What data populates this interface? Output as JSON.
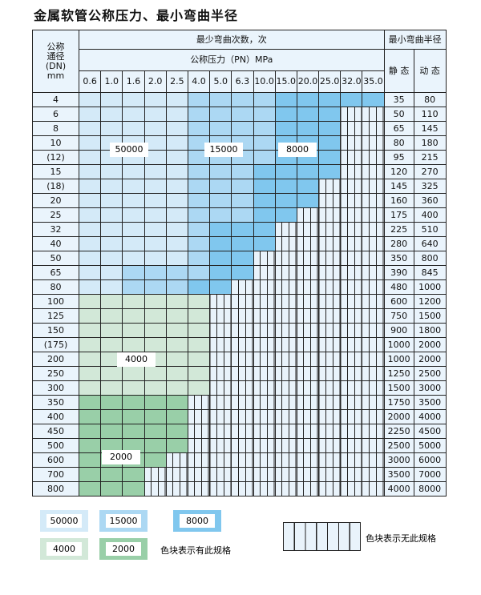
{
  "title": "金属软管公称压力、最小弯曲半径",
  "header": {
    "dn_label": [
      "公称",
      "通径",
      "(DN)",
      "mm"
    ],
    "cycles": "最少弯曲次数，次",
    "pressure": "公称压力（PN）MPa",
    "radius": "最小弯曲半径",
    "static": "静 态",
    "dynamic": "动 态",
    "pressures": [
      "0.6",
      "1.0",
      "1.6",
      "2.0",
      "2.5",
      "4.0",
      "5.0",
      "6.3",
      "10.0",
      "15.0",
      "20.0",
      "25.0",
      "32.0",
      "35.0"
    ]
  },
  "tier_colors": {
    "1": "#d4eaf8",
    "2": "#acd8f3",
    "3": "#80c7ee",
    "4": "#d2e8d8",
    "5": "#99cfa8"
  },
  "rows": [
    {
      "dn": "4",
      "static": "35",
      "dynamic": "80",
      "tiers": "11111222233333"
    },
    {
      "dn": "6",
      "static": "50",
      "dynamic": "110",
      "tiers": "11111222233300"
    },
    {
      "dn": "8",
      "static": "65",
      "dynamic": "145",
      "tiers": "11111222233300"
    },
    {
      "dn": "10",
      "static": "80",
      "dynamic": "180",
      "tiers": "11111222233300"
    },
    {
      "dn": "(12)",
      "static": "95",
      "dynamic": "215",
      "tiers": "11111222233300"
    },
    {
      "dn": "15",
      "static": "120",
      "dynamic": "270",
      "tiers": "11111222333300"
    },
    {
      "dn": "(18)",
      "static": "145",
      "dynamic": "325",
      "tiers": "11111222333000"
    },
    {
      "dn": "20",
      "static": "160",
      "dynamic": "360",
      "tiers": "11111222333000"
    },
    {
      "dn": "25",
      "static": "175",
      "dynamic": "400",
      "tiers": "11111222330000"
    },
    {
      "dn": "32",
      "static": "225",
      "dynamic": "510",
      "tiers": "11111233300000"
    },
    {
      "dn": "40",
      "static": "280",
      "dynamic": "640",
      "tiers": "11111233300000"
    },
    {
      "dn": "50",
      "static": "350",
      "dynamic": "800",
      "tiers": "11111233000000"
    },
    {
      "dn": "65",
      "static": "390",
      "dynamic": "845",
      "tiers": "11222233000000"
    },
    {
      "dn": "80",
      "static": "480",
      "dynamic": "1000",
      "tiers": "11222330000000"
    },
    {
      "dn": "100",
      "static": "600",
      "dynamic": "1200",
      "tiers": "44444400000000"
    },
    {
      "dn": "125",
      "static": "750",
      "dynamic": "1500",
      "tiers": "44444400000000"
    },
    {
      "dn": "150",
      "static": "900",
      "dynamic": "1800",
      "tiers": "44444400000000"
    },
    {
      "dn": "(175)",
      "static": "1000",
      "dynamic": "2000",
      "tiers": "44444400000000"
    },
    {
      "dn": "200",
      "static": "1000",
      "dynamic": "2000",
      "tiers": "44444400000000"
    },
    {
      "dn": "250",
      "static": "1250",
      "dynamic": "2500",
      "tiers": "44444400000000"
    },
    {
      "dn": "300",
      "static": "1500",
      "dynamic": "3000",
      "tiers": "44444400000000"
    },
    {
      "dn": "350",
      "static": "1750",
      "dynamic": "3500",
      "tiers": "55555000000000"
    },
    {
      "dn": "400",
      "static": "2000",
      "dynamic": "4000",
      "tiers": "55555000000000"
    },
    {
      "dn": "450",
      "static": "2250",
      "dynamic": "4500",
      "tiers": "55555000000000"
    },
    {
      "dn": "500",
      "static": "2500",
      "dynamic": "5000",
      "tiers": "55555000000000"
    },
    {
      "dn": "600",
      "static": "3000",
      "dynamic": "6000",
      "tiers": "55550000000000"
    },
    {
      "dn": "700",
      "static": "3500",
      "dynamic": "7000",
      "tiers": "55500000000000"
    },
    {
      "dn": "800",
      "static": "4000",
      "dynamic": "8000",
      "tiers": "55500000000000"
    }
  ],
  "region_labels": {
    "t1": "50000",
    "t2": "15000",
    "t3": "8000",
    "t4": "4000",
    "t5": "2000"
  },
  "legend": {
    "l1": "50000",
    "l2": "15000",
    "l3": "8000",
    "l4": "4000",
    "l5": "2000",
    "has_spec": "色块表示有此规格",
    "no_spec": "色块表示无此规格"
  }
}
